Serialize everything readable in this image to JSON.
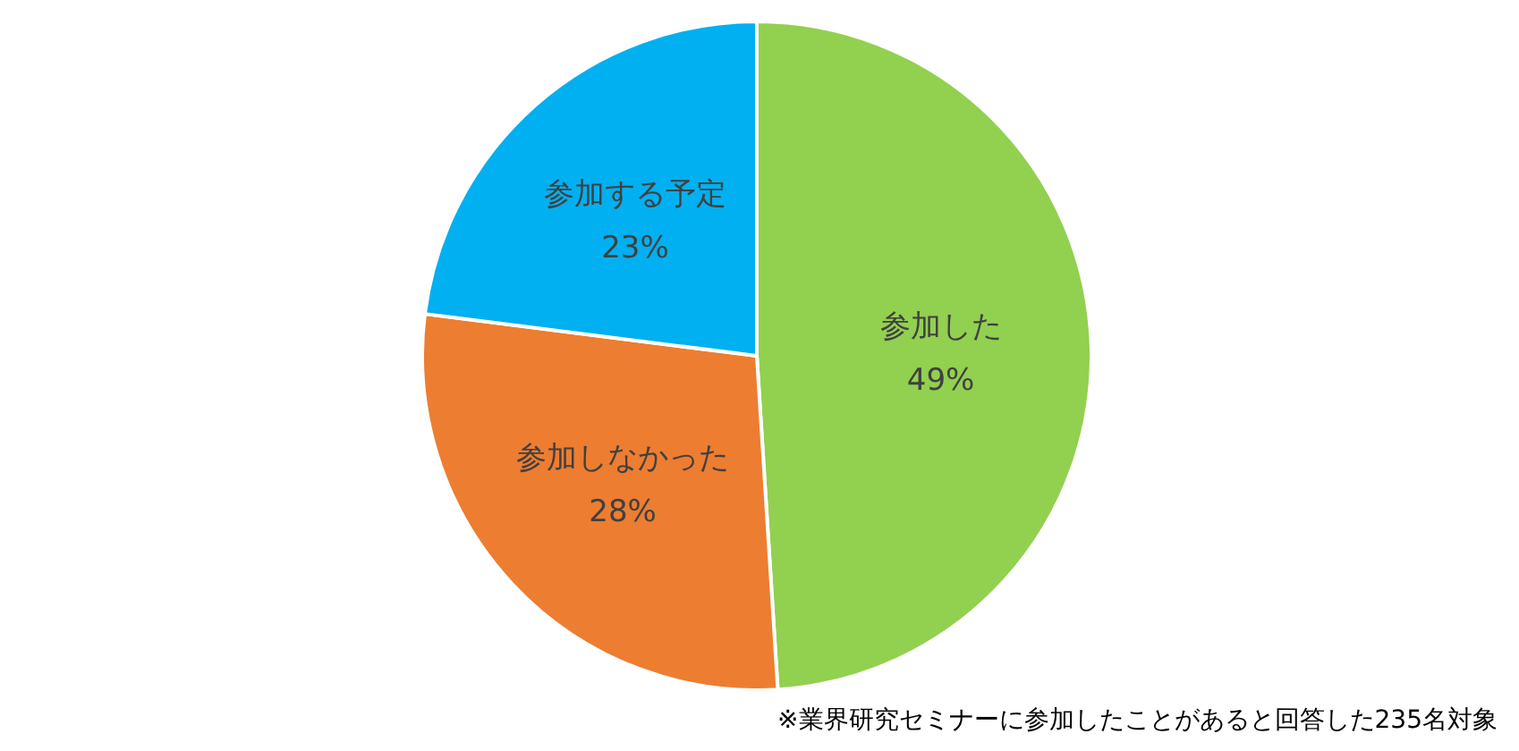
{
  "chart_data": {
    "type": "pie",
    "categories": [
      "参加した",
      "参加しなかった",
      "参加する予定"
    ],
    "values": [
      49,
      28,
      23
    ],
    "value_labels": [
      "49%",
      "28%",
      "23%"
    ],
    "colors": [
      "#92d050",
      "#ed7d31",
      "#00b0f0"
    ],
    "annotations": [
      "※業界研究セミナーに参加したことがあると回答した235名対象"
    ]
  }
}
